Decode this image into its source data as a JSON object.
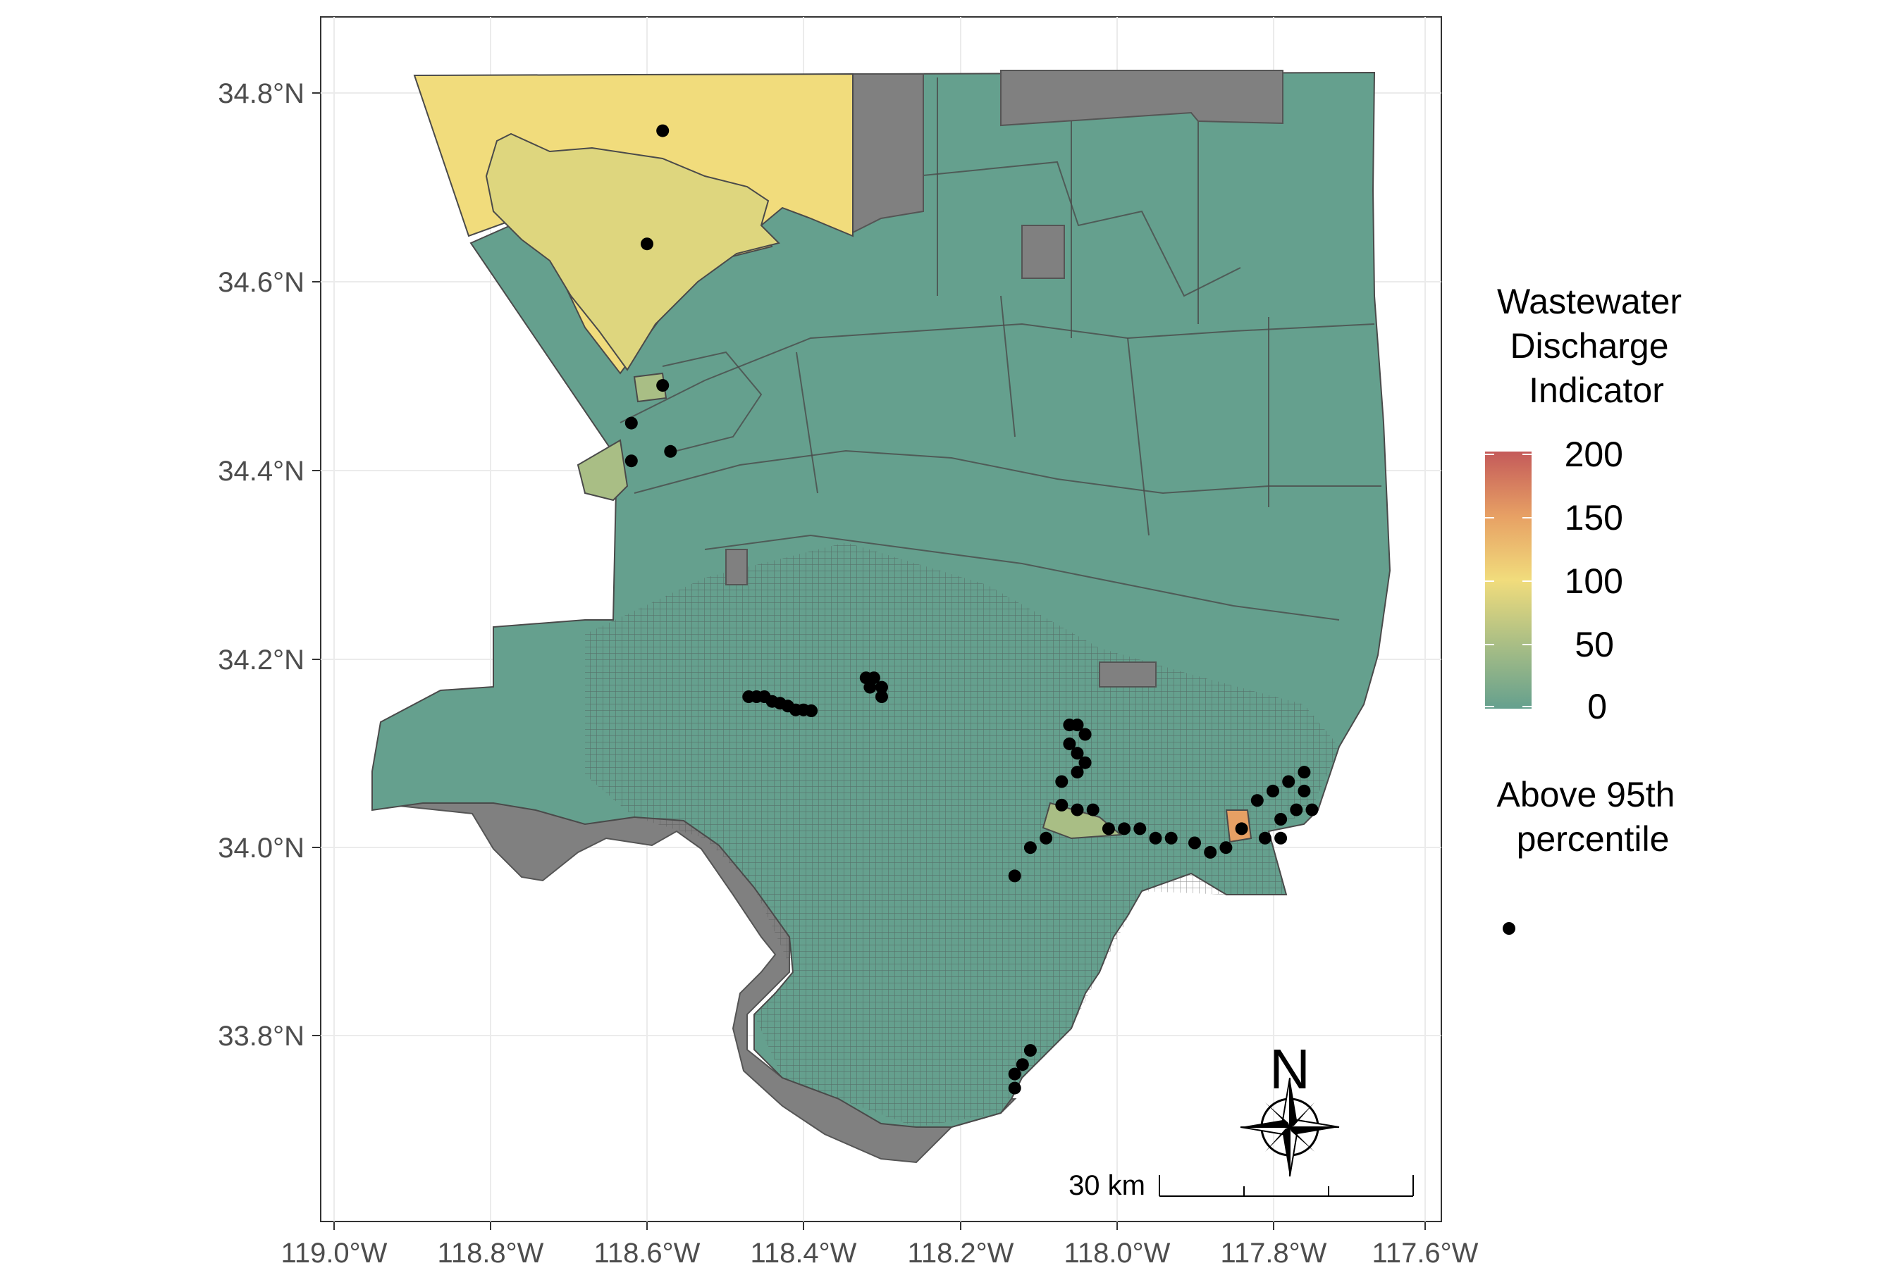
{
  "map": {
    "lat_ticks": [
      "34.8°N",
      "34.6°N",
      "34.4°N",
      "34.2°N",
      "34.0°N",
      "33.8°N"
    ],
    "lon_ticks": [
      "119.0°W",
      "118.8°W",
      "118.6°W",
      "118.4°W",
      "118.2°W",
      "118.0°W",
      "117.8°W",
      "117.6°W"
    ],
    "colors": {
      "low": "#65a08e",
      "mid": "#f1dc7c",
      "high": "#c45a5a",
      "missing": "#808080",
      "tract_outline": "#4a4a4a",
      "point": "#000000"
    }
  },
  "legend": {
    "fill_title_lines": [
      "Wastewater",
      "Discharge",
      "Indicator"
    ],
    "fill_values": [
      "200",
      "150",
      "100",
      "50",
      "0"
    ],
    "point_title_lines": [
      "Above 95th",
      "percentile"
    ]
  },
  "north_arrow": {
    "label": "N"
  },
  "scale_bar": {
    "label": "30 km"
  },
  "chart_data": {
    "type": "map",
    "fill_variable": "Wastewater Discharge Indicator",
    "fill_range": [
      0,
      200
    ],
    "point_layer": "Above 95th percentile",
    "x_axis": "longitude",
    "y_axis": "latitude",
    "xlim": [
      -119.0,
      -117.6
    ],
    "ylim": [
      33.7,
      34.85
    ],
    "grid": true,
    "legend_position": "right",
    "points": [
      [
        -118.58,
        34.76
      ],
      [
        -118.6,
        34.64
      ],
      [
        -118.58,
        34.49
      ],
      [
        -118.62,
        34.45
      ],
      [
        -118.62,
        34.41
      ],
      [
        -118.57,
        34.42
      ],
      [
        -118.47,
        34.16
      ],
      [
        -118.46,
        34.16
      ],
      [
        -118.45,
        34.16
      ],
      [
        -118.44,
        34.155
      ],
      [
        -118.43,
        34.153
      ],
      [
        -118.42,
        34.15
      ],
      [
        -118.41,
        34.146
      ],
      [
        -118.4,
        34.146
      ],
      [
        -118.39,
        34.145
      ],
      [
        -118.32,
        34.18
      ],
      [
        -118.31,
        34.18
      ],
      [
        -118.315,
        34.17
      ],
      [
        -118.3,
        34.17
      ],
      [
        -118.3,
        34.16
      ],
      [
        -118.06,
        34.13
      ],
      [
        -118.05,
        34.13
      ],
      [
        -118.04,
        34.12
      ],
      [
        -118.06,
        34.11
      ],
      [
        -118.05,
        34.1
      ],
      [
        -118.04,
        34.09
      ],
      [
        -118.05,
        34.08
      ],
      [
        -118.07,
        34.07
      ],
      [
        -118.07,
        34.045
      ],
      [
        -118.05,
        34.04
      ],
      [
        -118.03,
        34.04
      ],
      [
        -118.01,
        34.02
      ],
      [
        -117.99,
        34.02
      ],
      [
        -117.97,
        34.02
      ],
      [
        -117.95,
        34.01
      ],
      [
        -117.93,
        34.01
      ],
      [
        -117.9,
        34.005
      ],
      [
        -117.88,
        33.995
      ],
      [
        -117.86,
        34.0
      ],
      [
        -117.84,
        34.02
      ],
      [
        -117.82,
        34.05
      ],
      [
        -117.8,
        34.06
      ],
      [
        -117.78,
        34.07
      ],
      [
        -117.76,
        34.08
      ],
      [
        -117.76,
        34.06
      ],
      [
        -117.75,
        34.04
      ],
      [
        -117.77,
        34.04
      ],
      [
        -117.79,
        34.03
      ],
      [
        -117.79,
        34.01
      ],
      [
        -117.81,
        34.01
      ],
      [
        -118.13,
        33.97
      ],
      [
        -118.11,
        34.0
      ],
      [
        -118.09,
        34.01
      ],
      [
        -118.11,
        33.785
      ],
      [
        -118.12,
        33.77
      ],
      [
        -118.13,
        33.76
      ],
      [
        -118.13,
        33.745
      ]
    ]
  }
}
